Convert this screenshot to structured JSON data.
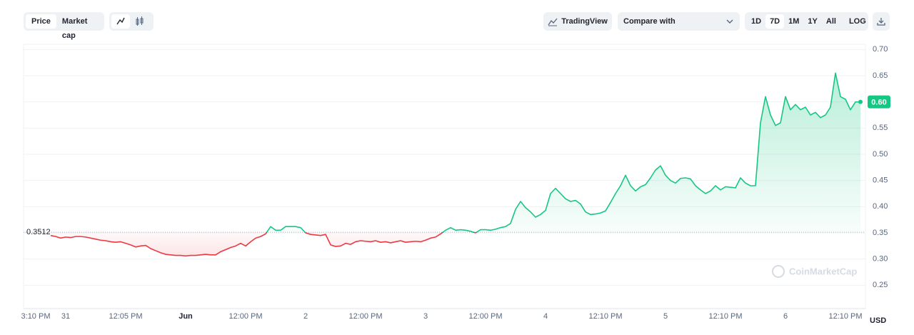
{
  "toolbar": {
    "tabs": [
      "Price",
      "Market cap"
    ],
    "tradingview": "TradingView",
    "compare": "Compare with",
    "ranges": [
      "1D",
      "7D",
      "1M",
      "1Y",
      "All",
      "LOG"
    ]
  },
  "chart_data": {
    "type": "line",
    "color_up": "#16c784",
    "color_down": "#ea3943",
    "ylim": [
      0.2,
      0.71
    ],
    "yticks": [
      0.25,
      {
        "value": 0.3,
        "label": "0.30"
      },
      0.35,
      {
        "value": 0.4,
        "label": "0.40"
      },
      0.45,
      {
        "value": 0.5,
        "label": "0.50"
      },
      0.55,
      {
        "value": 0.6,
        "label": "0.60"
      },
      0.65,
      {
        "value": 0.7,
        "label": "0.70"
      }
    ],
    "grid": true,
    "y_unit": "USD",
    "watermark": "CoinMarketCap",
    "baseline": {
      "value": 0.3512,
      "label": "0.3512"
    },
    "current_price": {
      "value": 0.6,
      "label": "0.60"
    },
    "categories": [
      "3:10 PM",
      null,
      null,
      null,
      null,
      null,
      "31",
      null,
      null,
      null,
      null,
      null,
      null,
      null,
      null,
      null,
      null,
      null,
      "12:05 PM",
      null,
      null,
      null,
      null,
      null,
      null,
      null,
      null,
      null,
      null,
      null,
      "Jun",
      null,
      null,
      null,
      null,
      null,
      null,
      null,
      null,
      null,
      null,
      null,
      "12:00 PM",
      null,
      null,
      null,
      null,
      null,
      null,
      null,
      null,
      null,
      null,
      null,
      "2",
      null,
      null,
      null,
      null,
      null,
      null,
      null,
      null,
      null,
      null,
      null,
      "12:00 PM",
      null,
      null,
      null,
      null,
      null,
      null,
      null,
      null,
      null,
      null,
      null,
      "3",
      null,
      null,
      null,
      null,
      null,
      null,
      null,
      null,
      null,
      null,
      null,
      "12:00 PM",
      null,
      null,
      null,
      null,
      null,
      null,
      null,
      null,
      null,
      null,
      null,
      "4",
      null,
      null,
      null,
      null,
      null,
      null,
      null,
      null,
      null,
      null,
      null,
      "12:10 PM",
      null,
      null,
      null,
      null,
      null,
      null,
      null,
      null,
      null,
      null,
      null,
      "5",
      null,
      null,
      null,
      null,
      null,
      null,
      null,
      null,
      null,
      null,
      null,
      "12:10 PM",
      null,
      null,
      null,
      null,
      null,
      null,
      null,
      null,
      null,
      null,
      null,
      "6",
      null,
      null,
      null,
      null,
      null,
      null,
      null,
      null,
      null,
      null,
      null,
      "12:10 PM",
      null,
      null,
      null
    ],
    "values": [
      null,
      null,
      null,
      0.345,
      0.343,
      0.34,
      0.342,
      0.341,
      0.343,
      0.343,
      0.342,
      0.34,
      0.338,
      0.336,
      0.335,
      0.333,
      0.332,
      0.333,
      0.33,
      0.327,
      0.323,
      0.325,
      0.326,
      0.32,
      0.316,
      0.312,
      0.309,
      0.308,
      0.307,
      0.307,
      0.306,
      0.307,
      0.307,
      0.308,
      0.309,
      0.308,
      0.308,
      0.314,
      0.318,
      0.322,
      0.325,
      0.33,
      0.325,
      0.333,
      0.34,
      0.343,
      0.348,
      0.362,
      0.355,
      0.355,
      0.362,
      0.362,
      0.362,
      0.36,
      0.35,
      0.347,
      0.346,
      0.345,
      0.347,
      0.327,
      0.324,
      0.325,
      0.33,
      0.328,
      0.333,
      0.335,
      0.334,
      0.333,
      0.335,
      0.332,
      0.333,
      0.331,
      0.333,
      0.335,
      0.332,
      0.333,
      0.334,
      0.333,
      0.336,
      0.34,
      0.342,
      0.348,
      0.355,
      0.36,
      0.355,
      0.356,
      0.355,
      0.353,
      0.35,
      0.356,
      0.356,
      0.355,
      0.357,
      0.36,
      0.362,
      0.368,
      0.395,
      0.41,
      0.398,
      0.39,
      0.38,
      0.385,
      0.393,
      0.425,
      0.435,
      0.425,
      0.415,
      0.41,
      0.412,
      0.405,
      0.39,
      0.385,
      0.386,
      0.388,
      0.392,
      0.408,
      0.425,
      0.44,
      0.46,
      0.44,
      0.43,
      0.438,
      0.442,
      0.455,
      0.47,
      0.478,
      0.46,
      0.45,
      0.445,
      0.454,
      0.455,
      0.453,
      0.44,
      0.432,
      0.425,
      0.43,
      0.44,
      0.432,
      0.438,
      0.437,
      0.436,
      0.455,
      0.445,
      0.44,
      0.44,
      0.56,
      0.61,
      0.575,
      0.555,
      0.56,
      0.61,
      0.585,
      0.595,
      0.585,
      0.59,
      0.575,
      0.58,
      0.57,
      0.575,
      0.59,
      0.655,
      0.61,
      0.605,
      0.585,
      0.6,
      0.6
    ]
  }
}
